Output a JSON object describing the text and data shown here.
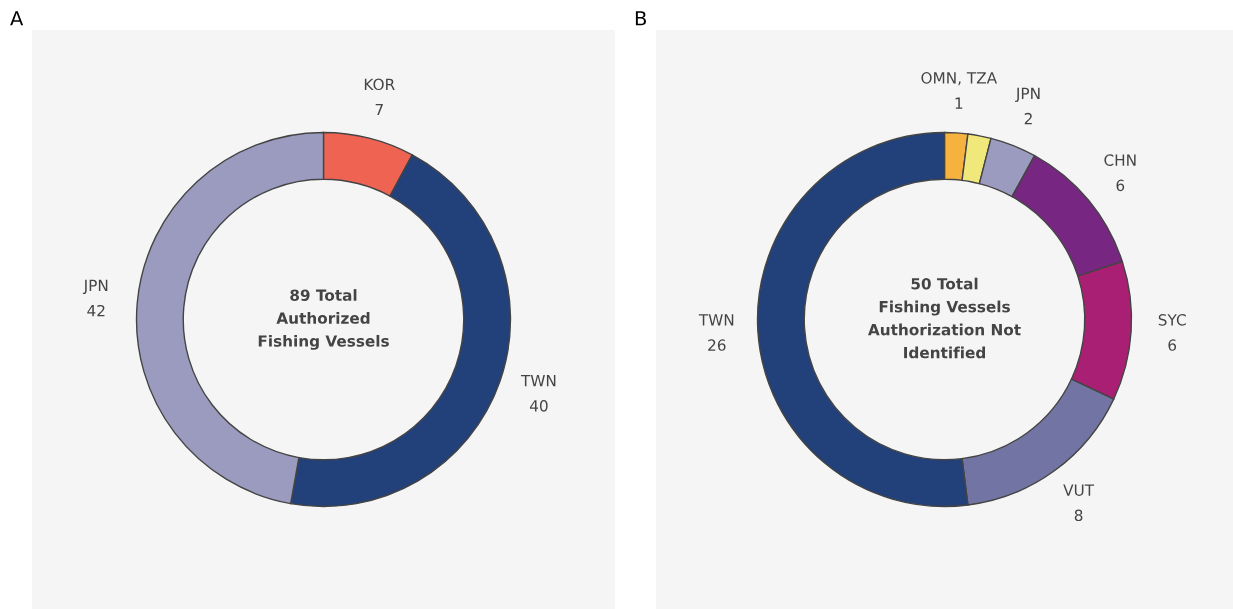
{
  "chart_data": [
    {
      "type": "donut",
      "title": "A",
      "categories": [
        "KOR",
        "TWN",
        "JPN"
      ],
      "values": [
        7,
        40,
        42
      ],
      "colors": [
        "#ee6352",
        "#22407a",
        "#9a9bbf"
      ],
      "data_labels": true,
      "annotations": [
        "89 Total\nAuthorized\nFishing Vessels"
      ]
    },
    {
      "type": "donut",
      "title": "B",
      "categories": [
        "OMN, TZA",
        null,
        "JPN",
        "CHN",
        "SYC",
        "VUT",
        "TWN"
      ],
      "values": [
        1,
        1,
        2,
        6,
        6,
        8,
        26
      ],
      "value_labels": [
        "1",
        null,
        "2",
        "6",
        "6",
        "8",
        "26"
      ],
      "colors": [
        "#f6b23f",
        "#f0e87a",
        "#9a9bbf",
        "#772782",
        "#a91f73",
        "#7275a3",
        "#22407a"
      ],
      "annotations": [
        "50 Total\nFishing Vessels\nAuthorization Not\nIdentified"
      ]
    }
  ]
}
